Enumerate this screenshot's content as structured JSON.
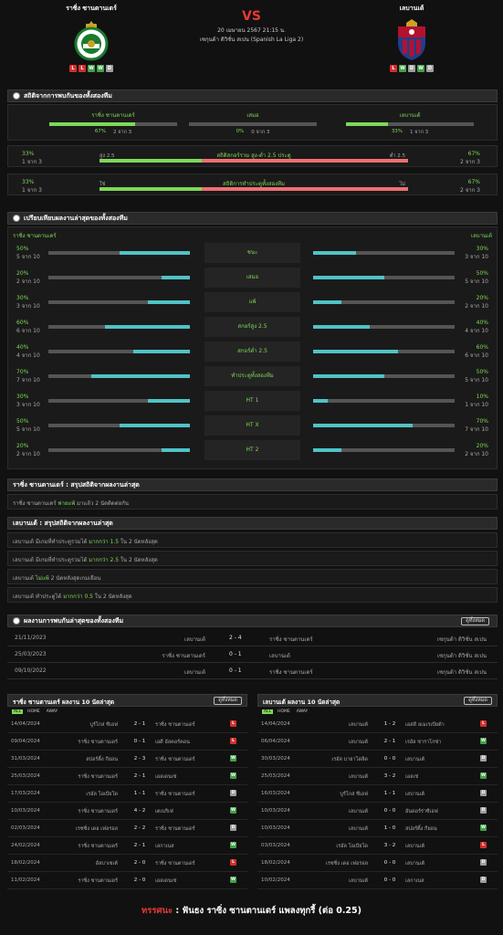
{
  "match": {
    "home": "ราซิ่ง ซานตานเดร์",
    "away": "เลบานเต้",
    "vs": "VS",
    "date": "20 เมษายน 2567 21:15 น.",
    "venue": "เซกุนด้า ดิวิชั่น สเปน (Spanish La Liga 2)",
    "home_form": [
      "L",
      "L",
      "W",
      "W",
      "D"
    ],
    "away_form": [
      "L",
      "W",
      "D",
      "W",
      "D"
    ]
  },
  "sections": {
    "h2h_stats": "สถิติจากการพบกันของทั้งสองทีม",
    "compare": "เปรียบเทียบผลงานล่าสุดของทั้งสองทีม",
    "home_summary": "ราซิ่ง ซานตานเดร์ : สรุปสถิติจากผลงานล่าสุด",
    "away_summary": "เลบานเต้ : สรุปสถิติจากผลงานล่าสุด",
    "h2h_results": "ผลงานการพบกันล่าสุดของทั้งสองทีม",
    "more": "ดูทั้งหมด"
  },
  "h2h": {
    "home_label": "ราซิ่ง ซานตานเดร์",
    "home_pct": "67%",
    "home_of": "2 จาก 3",
    "draw_label": "เสมอ",
    "draw_pct": "0%",
    "draw_of": "0 จาก 3",
    "away_label": "เลบานเต้",
    "away_pct": "33%",
    "away_of": "1 จาก 3",
    "home_frac": 0.67,
    "draw_frac": 0,
    "away_frac": 0.33
  },
  "ou": [
    {
      "lpct": "33%",
      "lof": "1 จาก 3",
      "ll": "สูง 2.5",
      "title": "สถิติสกอร์รวม สูง-ต่ำ 2.5 ประตู",
      "rl": "ต่ำ 2.5",
      "rpct": "67%",
      "rof": "2 จาก 3",
      "frac": 0.33
    },
    {
      "lpct": "33%",
      "lof": "1 จาก 3",
      "ll": "ใช่",
      "title": "สถิติการทำประตูทั้งสองทีม",
      "rl": "ไม่",
      "rpct": "67%",
      "rof": "2 จาก 3",
      "frac": 0.33
    }
  ],
  "compare": {
    "home": "ราซิ่ง ซานตานเดร์",
    "away": "เลบานเต้",
    "rows": [
      {
        "label": "ชนะ",
        "lp": "50%",
        "lo": "5 จาก 10",
        "rp": "30%",
        "ro": "3 จาก 10",
        "lf": 0.5,
        "rf": 0.3
      },
      {
        "label": "เสมอ",
        "lp": "20%",
        "lo": "2 จาก 10",
        "rp": "50%",
        "ro": "5 จาก 10",
        "lf": 0.2,
        "rf": 0.5
      },
      {
        "label": "แพ้",
        "lp": "30%",
        "lo": "3 จาก 10",
        "rp": "20%",
        "ro": "2 จาก 10",
        "lf": 0.3,
        "rf": 0.2
      },
      {
        "label": "สกอร์สูง 2.5",
        "lp": "60%",
        "lo": "6 จาก 10",
        "rp": "40%",
        "ro": "4 จาก 10",
        "lf": 0.6,
        "rf": 0.4
      },
      {
        "label": "สกอร์ต่ำ 2.5",
        "lp": "40%",
        "lo": "4 จาก 10",
        "rp": "60%",
        "ro": "6 จาก 10",
        "lf": 0.4,
        "rf": 0.6
      },
      {
        "label": "ทำประตูทั้งสองทีม",
        "lp": "70%",
        "lo": "7 จาก 10",
        "rp": "50%",
        "ro": "5 จาก 10",
        "lf": 0.7,
        "rf": 0.5
      },
      {
        "label": "HT 1",
        "lp": "30%",
        "lo": "3 จาก 10",
        "rp": "10%",
        "ro": "1 จาก 10",
        "lf": 0.3,
        "rf": 0.1
      },
      {
        "label": "HT X",
        "lp": "50%",
        "lo": "5 จาก 10",
        "rp": "70%",
        "ro": "7 จาก 10",
        "lf": 0.5,
        "rf": 0.7
      },
      {
        "label": "HT 2",
        "lp": "20%",
        "lo": "2 จาก 10",
        "rp": "20%",
        "ro": "2 จาก 10",
        "lf": 0.2,
        "rf": 0.2
      }
    ]
  },
  "home_summary": {
    "team": "ราซิ่ง ซานตานเดร์",
    "hl": "พ่ายแพ้",
    "rest": "มาแล้ว 2 นัดติดต่อกัน"
  },
  "away_summary": [
    {
      "team": "เลบานเต้",
      "pre": "มีเกมที่ทำประตูรวมได้",
      "hl": "มากกว่า 1.5",
      "rest": "ใน 2 นัดหลังสุด"
    },
    {
      "team": "เลบานเต้",
      "pre": "มีเกมที่ทำประตูรวมได้",
      "hl": "มากกว่า 2.5",
      "rest": "ใน 2 นัดหลังสุด"
    },
    {
      "team": "เลบานเต้",
      "pre": "",
      "hl": "ไม่แพ้",
      "rest": "2 นัดหลังสุดเกมเยือน"
    },
    {
      "team": "เลบานเต้",
      "pre": "ทำประตูได้",
      "hl": "มากกว่า 0.5",
      "rest": "ใน 2 นัดหลังสุด"
    }
  ],
  "h2h_results": [
    {
      "date": "21/11/2023",
      "home": "เลบานเต้",
      "score": "2 - 4",
      "away": "ราซิ่ง ซานตานเดร์",
      "comp": "เซกุนด้า ดิวิชั่น สเปน"
    },
    {
      "date": "25/03/2023",
      "home": "ราซิ่ง ซานตานเดร์",
      "score": "0 - 1",
      "away": "เลบานเต้",
      "comp": "เซกุนด้า ดิวิชั่น สเปน"
    },
    {
      "date": "09/10/2022",
      "home": "เลบานเต้",
      "score": "0 - 1",
      "away": "ราซิ่ง ซานตานเดร์",
      "comp": "เซกุนด้า ดิวิชั่น สเปน"
    }
  ],
  "last10_home": {
    "title": "ราซิ่ง ซานตานเดร์ ผลงาน 10 นัดล่าสุด",
    "tabs": [
      "ALL",
      "HOME",
      "AWAY"
    ],
    "rows": [
      {
        "date": "14/04/2024",
        "home": "บูร์โกส ซีเอฟ",
        "score": "2 - 1",
        "away": "ราซิ่ง ซานตานเดร์",
        "r": "L"
      },
      {
        "date": "09/04/2024",
        "home": "ราซิ่ง ซานตานเดร์",
        "score": "0 - 1",
        "away": "เอดี อัลคอร์คอน",
        "r": "L"
      },
      {
        "date": "31/03/2024",
        "home": "สปอร์ติ้ง กียอน",
        "score": "2 - 3",
        "away": "ราซิ่ง ซานตานเดร์",
        "r": "W"
      },
      {
        "date": "25/03/2024",
        "home": "ราซิ่ง ซานตานเดร์",
        "score": "2 - 1",
        "away": "เอลเดนเซ่",
        "r": "W"
      },
      {
        "date": "17/03/2024",
        "home": "เรอัล โอเบียโด",
        "score": "1 - 1",
        "away": "ราซิ่ง ซานตานเดร์",
        "r": "D"
      },
      {
        "date": "10/03/2024",
        "home": "ราซิ่ง ซานตานเดร์",
        "score": "4 - 2",
        "away": "เตเนริเฟ่",
        "r": "W"
      },
      {
        "date": "02/03/2024",
        "home": "เรซซิ่ง เดอ เฟอรอล",
        "score": "2 - 2",
        "away": "ราซิ่ง ซานตานเดร์",
        "r": "D"
      },
      {
        "date": "24/02/2024",
        "home": "ราซิ่ง ซานตานเดร์",
        "score": "2 - 1",
        "away": "เลกาเนส",
        "r": "W"
      },
      {
        "date": "18/02/2024",
        "home": "อัลบาเซเต้",
        "score": "2 - 0",
        "away": "ราซิ่ง ซานตานเดร์",
        "r": "L"
      },
      {
        "date": "11/02/2024",
        "home": "ราซิ่ง ซานตานเดร์",
        "score": "2 - 0",
        "away": "เอลเดนเซ่",
        "r": "W"
      }
    ]
  },
  "last10_away": {
    "title": "เลบานเต้ ผลงาน 10 นัดล่าสุด",
    "tabs": [
      "ALL",
      "HOME",
      "AWAY"
    ],
    "rows": [
      {
        "date": "14/04/2024",
        "home": "เลบานเต้",
        "score": "1 - 2",
        "away": "เอสดี อเมเรเบียต้า",
        "r": "L"
      },
      {
        "date": "06/04/2024",
        "home": "เลบานเต้",
        "score": "2 - 1",
        "away": "เรอัล ซาราโกซ่า",
        "r": "W"
      },
      {
        "date": "30/03/2024",
        "home": "เรอัล บายาโดลิด",
        "score": "0 - 0",
        "away": "เลบานเต้",
        "r": "D"
      },
      {
        "date": "25/03/2024",
        "home": "เลบานเต้",
        "score": "3 - 2",
        "away": "เอลเช่",
        "r": "W"
      },
      {
        "date": "16/03/2024",
        "home": "บูร์โกส ซีเอฟ",
        "score": "1 - 1",
        "away": "เลบานเต้",
        "r": "D"
      },
      {
        "date": "10/03/2024",
        "home": "เลบานเต้",
        "score": "0 - 0",
        "away": "อันดอร์ร่าซีเอฟ",
        "r": "D"
      },
      {
        "date": "10/03/2024",
        "home": "เลบานเต้",
        "score": "1 - 0",
        "away": "สปอร์ติ้ง กียอน",
        "r": "W"
      },
      {
        "date": "03/03/2024",
        "home": "เรอัล โอเบียโด",
        "score": "3 - 2",
        "away": "เลบานเต้",
        "r": "L"
      },
      {
        "date": "18/02/2024",
        "home": "เรซซิ่ง เดอ เฟอรอล",
        "score": "0 - 0",
        "away": "เลบานเต้",
        "r": "D"
      },
      {
        "date": "10/02/2024",
        "home": "เลบานเต้",
        "score": "0 - 0",
        "away": "เลกาเนส",
        "r": "D"
      }
    ]
  },
  "prediction": {
    "label": "ทรรศนะ",
    "colon": " : ",
    "text": "ฟันธง ราซิ่ง ซานตานเดร์ แพลงทุกรี้ (ต่อ 0.25)"
  },
  "colors": {
    "green": "#7ed957",
    "red": "#e53935",
    "cyan": "#4fc3c7",
    "bg": "#111111"
  }
}
